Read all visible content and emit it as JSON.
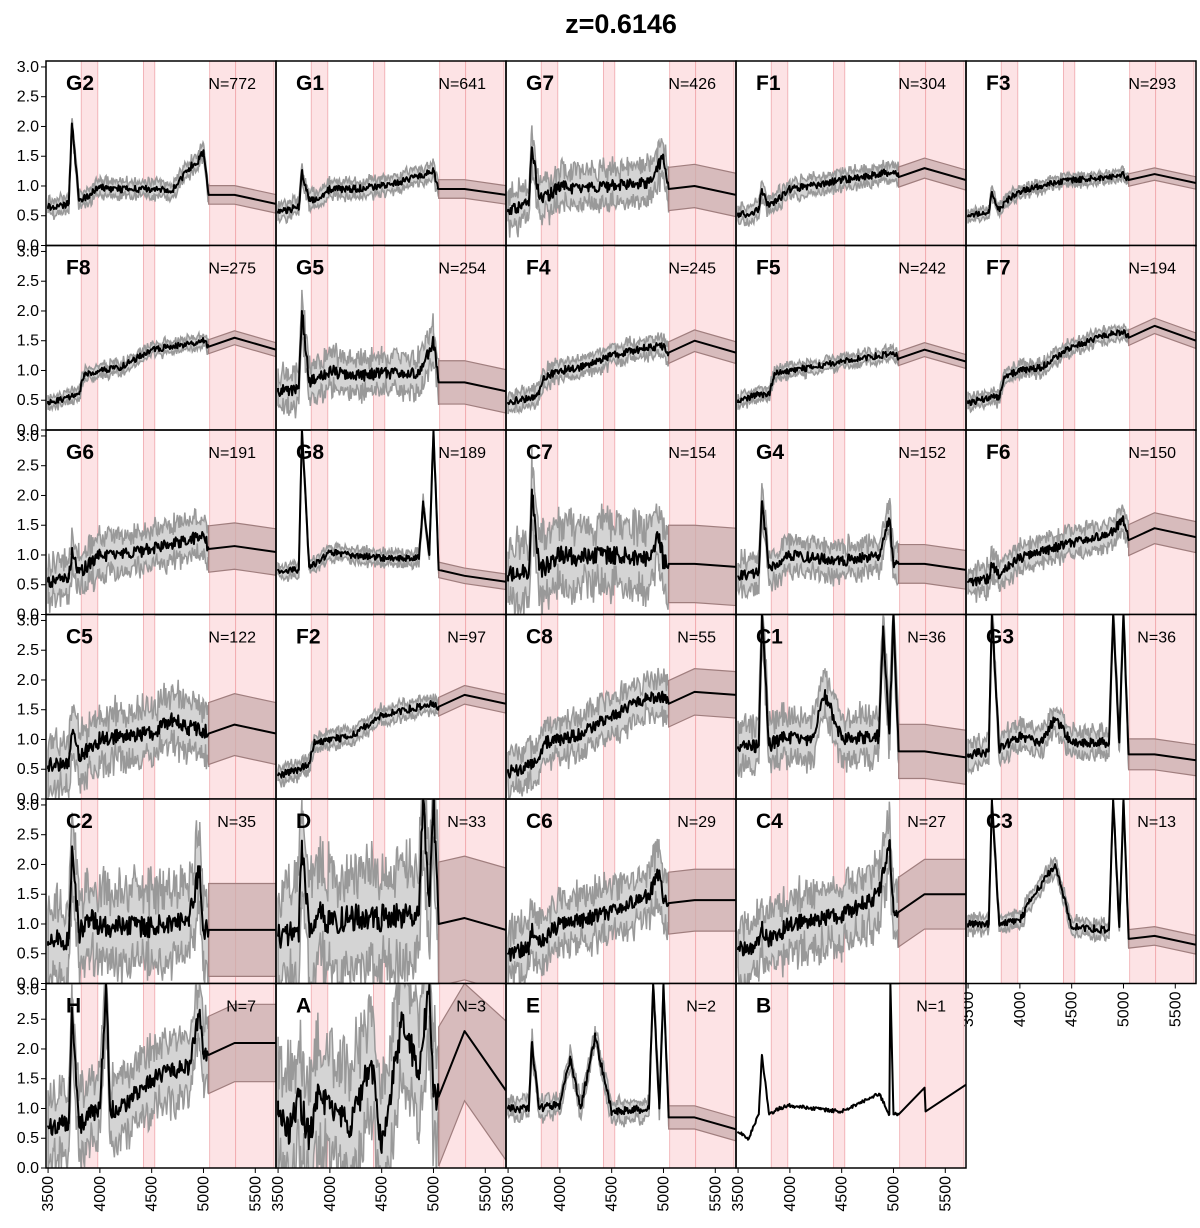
{
  "chart_data": {
    "type": "line",
    "title": "z=0.6146",
    "xlim": [
      3480,
      5700
    ],
    "ylim": [
      0,
      3.1
    ],
    "x_ticks": [
      3500,
      4000,
      4500,
      5000,
      5500
    ],
    "y_ticks": [
      "0.0",
      "0.5",
      "1.0",
      "1.5",
      "2.0",
      "2.5",
      "3.0"
    ],
    "shaded_bands": [
      [
        3820,
        3980
      ],
      [
        4420,
        4530
      ],
      [
        5060,
        5680
      ]
    ],
    "line_marks": [
      5310
    ],
    "colors": {
      "median": "#000000",
      "envelope_fill": "#d4d4d4",
      "envelope_edge": "#999999",
      "extrapolated_fill": "#c9aeae",
      "extrapolated_edge": "#a07e7e",
      "band": "#fde3e5",
      "band_edge": "#f0a8ad"
    },
    "panels": [
      {
        "label": "G2",
        "n": "N=772",
        "x": [
          3500,
          3700,
          3730,
          3800,
          3900,
          4000,
          4100,
          4300,
          4500,
          4700,
          4860,
          4960,
          5000,
          5050,
          5300,
          5700
        ],
        "y": [
          0.65,
          0.7,
          2.05,
          0.75,
          0.85,
          1.0,
          0.95,
          0.95,
          0.95,
          0.92,
          1.3,
          1.45,
          1.6,
          0.85,
          0.85,
          0.7
        ],
        "spread": 0.12
      },
      {
        "label": "G1",
        "n": "N=641",
        "x": [
          3500,
          3700,
          3730,
          3800,
          3900,
          4000,
          4200,
          4500,
          4860,
          5000,
          5050,
          5300,
          5700
        ],
        "y": [
          0.55,
          0.65,
          1.25,
          0.75,
          0.8,
          0.95,
          0.95,
          1.0,
          1.15,
          1.25,
          0.95,
          0.95,
          0.85
        ],
        "spread": 0.12
      },
      {
        "label": "G7",
        "n": "N=426",
        "x": [
          3500,
          3700,
          3730,
          3800,
          3900,
          4000,
          4200,
          4500,
          4860,
          5000,
          5050,
          5300,
          5700
        ],
        "y": [
          0.6,
          0.7,
          1.65,
          0.8,
          0.85,
          1.0,
          0.95,
          1.0,
          1.05,
          1.5,
          0.95,
          1.0,
          0.85
        ],
        "spread": 0.28
      },
      {
        "label": "F1",
        "n": "N=304",
        "x": [
          3500,
          3700,
          3730,
          3800,
          3900,
          4000,
          4200,
          4500,
          4860,
          5000,
          5050,
          5300,
          5700
        ],
        "y": [
          0.5,
          0.6,
          0.95,
          0.65,
          0.8,
          0.95,
          1.0,
          1.1,
          1.2,
          1.25,
          1.15,
          1.3,
          1.1
        ],
        "spread": 0.13
      },
      {
        "label": "F3",
        "n": "N=293",
        "x": [
          3500,
          3700,
          3730,
          3800,
          3900,
          4000,
          4200,
          4500,
          4860,
          5000,
          5050,
          5300,
          5700
        ],
        "y": [
          0.5,
          0.55,
          0.9,
          0.6,
          0.8,
          0.9,
          1.0,
          1.1,
          1.15,
          1.2,
          1.1,
          1.2,
          1.05
        ],
        "spread": 0.08
      },
      {
        "label": "F8",
        "n": "N=275",
        "x": [
          3500,
          3700,
          3800,
          3850,
          4000,
          4200,
          4500,
          4860,
          5000,
          5050,
          5300,
          5700
        ],
        "y": [
          0.45,
          0.55,
          0.6,
          0.95,
          1.0,
          1.05,
          1.35,
          1.45,
          1.5,
          1.4,
          1.55,
          1.35
        ],
        "spread": 0.09
      },
      {
        "label": "G5",
        "n": "N=254",
        "x": [
          3500,
          3700,
          3730,
          3800,
          3900,
          4000,
          4200,
          4500,
          4860,
          5000,
          5050,
          5300,
          5700
        ],
        "y": [
          0.65,
          0.7,
          2.0,
          0.8,
          0.9,
          1.0,
          0.9,
          0.95,
          0.95,
          1.5,
          0.8,
          0.8,
          0.65
        ],
        "spread": 0.28
      },
      {
        "label": "F4",
        "n": "N=245",
        "x": [
          3500,
          3700,
          3800,
          3850,
          4000,
          4200,
          4500,
          4860,
          5000,
          5050,
          5300,
          5700
        ],
        "y": [
          0.45,
          0.55,
          0.6,
          0.9,
          1.0,
          1.05,
          1.25,
          1.4,
          1.4,
          1.3,
          1.5,
          1.3
        ],
        "spread": 0.14
      },
      {
        "label": "F5",
        "n": "N=242",
        "x": [
          3500,
          3700,
          3800,
          3850,
          4000,
          4200,
          4500,
          4860,
          5000,
          5050,
          5300,
          5700
        ],
        "y": [
          0.5,
          0.6,
          0.6,
          0.95,
          1.0,
          1.05,
          1.15,
          1.25,
          1.3,
          1.2,
          1.35,
          1.15
        ],
        "spread": 0.09
      },
      {
        "label": "F7",
        "n": "N=194",
        "x": [
          3500,
          3700,
          3800,
          3850,
          4000,
          4200,
          4500,
          4860,
          5000,
          5050,
          5300,
          5700
        ],
        "y": [
          0.45,
          0.55,
          0.55,
          0.9,
          1.0,
          1.05,
          1.4,
          1.6,
          1.65,
          1.55,
          1.75,
          1.5
        ],
        "spread": 0.1
      },
      {
        "label": "G6",
        "n": "N=191",
        "x": [
          3500,
          3700,
          3730,
          3800,
          3900,
          4000,
          4200,
          4500,
          4860,
          5000,
          5050,
          5300,
          5700
        ],
        "y": [
          0.55,
          0.6,
          1.05,
          0.7,
          0.85,
          1.0,
          1.0,
          1.1,
          1.25,
          1.35,
          1.1,
          1.15,
          1.05
        ],
        "spread": 0.3
      },
      {
        "label": "G8",
        "n": "N=189",
        "x": [
          3500,
          3700,
          3730,
          3800,
          3900,
          4000,
          4200,
          4500,
          4860,
          4900,
          4960,
          5000,
          5050,
          5300,
          5700
        ],
        "y": [
          0.75,
          0.75,
          3.1,
          0.8,
          0.9,
          1.05,
          1.0,
          0.95,
          0.95,
          1.9,
          1.0,
          3.1,
          0.75,
          0.65,
          0.55
        ],
        "spread": 0.1
      },
      {
        "label": "C7",
        "n": "N=154",
        "x": [
          3500,
          3700,
          3730,
          3800,
          3900,
          4000,
          4200,
          4500,
          4860,
          4960,
          5000,
          5050,
          5300,
          5700
        ],
        "y": [
          0.65,
          0.7,
          2.1,
          0.75,
          0.85,
          1.0,
          0.95,
          1.0,
          0.95,
          1.35,
          0.85,
          0.85,
          0.85,
          0.8
        ],
        "spread": 0.5
      },
      {
        "label": "G4",
        "n": "N=152",
        "x": [
          3500,
          3700,
          3730,
          3800,
          3900,
          4000,
          4200,
          4500,
          4860,
          4960,
          5000,
          5050,
          5300,
          5700
        ],
        "y": [
          0.65,
          0.7,
          1.9,
          0.8,
          0.9,
          1.0,
          0.95,
          0.9,
          1.0,
          1.6,
          0.85,
          0.85,
          0.85,
          0.75
        ],
        "spread": 0.25
      },
      {
        "label": "F6",
        "n": "N=150",
        "x": [
          3500,
          3700,
          3730,
          3800,
          3900,
          4000,
          4200,
          4500,
          4860,
          5000,
          5050,
          5300,
          5700
        ],
        "y": [
          0.55,
          0.6,
          0.85,
          0.65,
          0.85,
          0.95,
          1.05,
          1.2,
          1.35,
          1.6,
          1.25,
          1.45,
          1.3
        ],
        "spread": 0.2
      },
      {
        "label": "C5",
        "n": "N=122",
        "x": [
          3500,
          3700,
          3730,
          3800,
          3900,
          4000,
          4200,
          4500,
          4700,
          4860,
          5000,
          5050,
          5300,
          5700
        ],
        "y": [
          0.55,
          0.65,
          1.1,
          0.75,
          0.85,
          1.0,
          1.05,
          1.1,
          1.35,
          1.2,
          1.15,
          1.1,
          1.25,
          1.1
        ],
        "spread": 0.4
      },
      {
        "label": "F2",
        "n": "N=97",
        "x": [
          3500,
          3700,
          3800,
          3850,
          4000,
          4200,
          4500,
          4860,
          5000,
          5050,
          5300,
          5700
        ],
        "y": [
          0.4,
          0.5,
          0.6,
          0.95,
          1.0,
          1.05,
          1.4,
          1.55,
          1.6,
          1.55,
          1.75,
          1.6
        ],
        "spread": 0.12
      },
      {
        "label": "C8",
        "n": "N=55",
        "x": [
          3500,
          3700,
          3800,
          3850,
          4000,
          4200,
          4500,
          4860,
          5000,
          5050,
          5300,
          5700
        ],
        "y": [
          0.45,
          0.55,
          0.7,
          0.95,
          1.0,
          1.1,
          1.4,
          1.7,
          1.7,
          1.6,
          1.8,
          1.75
        ],
        "spread": 0.3
      },
      {
        "label": "C1",
        "n": "N=36",
        "x": [
          3500,
          3700,
          3730,
          3800,
          3900,
          4000,
          4200,
          4340,
          4500,
          4860,
          4900,
          4960,
          5000,
          5050,
          5300,
          5700
        ],
        "y": [
          0.85,
          0.9,
          3.1,
          0.9,
          1.0,
          1.05,
          0.95,
          1.75,
          1.0,
          1.05,
          2.9,
          1.1,
          3.1,
          0.8,
          0.8,
          0.7
        ],
        "spread": 0.35
      },
      {
        "label": "G3",
        "n": "N=36",
        "x": [
          3500,
          3700,
          3730,
          3800,
          3900,
          4000,
          4200,
          4340,
          4500,
          4860,
          4900,
          4960,
          5000,
          5050,
          5300,
          5700
        ],
        "y": [
          0.75,
          0.8,
          3.1,
          0.85,
          0.95,
          1.05,
          0.95,
          1.35,
          0.95,
          0.95,
          3.1,
          0.95,
          3.1,
          0.75,
          0.75,
          0.65
        ],
        "spread": 0.2
      },
      {
        "label": "C2",
        "n": "N=35",
        "x": [
          3500,
          3700,
          3730,
          3800,
          3900,
          4000,
          4200,
          4500,
          4860,
          4960,
          5000,
          5050,
          5300,
          5700
        ],
        "y": [
          0.7,
          0.75,
          2.2,
          0.85,
          1.1,
          0.95,
          0.95,
          0.95,
          1.1,
          1.9,
          0.9,
          0.9,
          0.9,
          0.9
        ],
        "spread": 0.6
      },
      {
        "label": "D",
        "n": "N=33",
        "x": [
          3500,
          3700,
          3730,
          3800,
          3900,
          4000,
          4200,
          4500,
          4860,
          4900,
          4960,
          5000,
          5050,
          5300,
          5700
        ],
        "y": [
          0.8,
          0.85,
          2.4,
          1.0,
          1.2,
          1.0,
          1.1,
          1.1,
          1.2,
          3.1,
          1.3,
          3.1,
          1.0,
          1.1,
          0.9
        ],
        "spread": 0.8
      },
      {
        "label": "C6",
        "n": "N=29",
        "x": [
          3500,
          3700,
          3730,
          3800,
          3900,
          4000,
          4200,
          4500,
          4860,
          4960,
          5000,
          5050,
          5300,
          5700
        ],
        "y": [
          0.5,
          0.6,
          0.9,
          0.7,
          0.85,
          1.0,
          1.05,
          1.2,
          1.5,
          1.9,
          1.35,
          1.35,
          1.4,
          1.4
        ],
        "spread": 0.4
      },
      {
        "label": "C4",
        "n": "N=27",
        "x": [
          3500,
          3700,
          3730,
          3800,
          3900,
          4000,
          4200,
          4500,
          4860,
          4960,
          5000,
          5050,
          5300,
          5700
        ],
        "y": [
          0.6,
          0.65,
          0.95,
          0.75,
          0.85,
          1.0,
          1.05,
          1.15,
          1.5,
          2.4,
          1.2,
          1.2,
          1.5,
          1.5
        ],
        "spread": 0.45
      },
      {
        "label": "C3",
        "n": "N=13",
        "x": [
          3500,
          3700,
          3730,
          3800,
          3900,
          4000,
          4100,
          4340,
          4500,
          4860,
          4900,
          4960,
          5000,
          5050,
          5300,
          5700
        ],
        "y": [
          1.0,
          1.0,
          3.1,
          1.0,
          1.05,
          1.05,
          1.4,
          2.0,
          0.95,
          0.9,
          3.1,
          0.95,
          3.1,
          0.75,
          0.8,
          0.65
        ],
        "spread": 0.12
      },
      {
        "label": "H",
        "n": "N=7",
        "x": [
          3500,
          3700,
          3730,
          3800,
          3900,
          4000,
          4060,
          4100,
          4200,
          4500,
          4860,
          4960,
          5000,
          5050,
          5300,
          5700
        ],
        "y": [
          0.7,
          0.75,
          2.7,
          0.7,
          0.9,
          1.0,
          3.1,
          1.0,
          1.0,
          1.5,
          1.7,
          2.6,
          1.9,
          1.9,
          2.1,
          2.1
        ],
        "spread": 0.5
      },
      {
        "label": "A",
        "n": "N=3",
        "x": [
          3500,
          3600,
          3700,
          3800,
          3900,
          4000,
          4200,
          4400,
          4500,
          4700,
          4860,
          4960,
          5000,
          5050,
          5300,
          5700
        ],
        "y": [
          0.9,
          0.6,
          1.2,
          0.5,
          1.3,
          1.0,
          0.7,
          1.8,
          0.3,
          2.5,
          1.6,
          3.1,
          1.2,
          1.2,
          2.3,
          1.3
        ],
        "spread": 0.9
      },
      {
        "label": "E",
        "n": "N=2",
        "x": [
          3500,
          3700,
          3730,
          3800,
          3900,
          4000,
          4100,
          4200,
          4340,
          4500,
          4860,
          4900,
          4960,
          5000,
          5050,
          5300,
          5700
        ],
        "y": [
          1.0,
          1.0,
          2.1,
          1.0,
          1.05,
          1.05,
          1.85,
          1.0,
          2.2,
          0.95,
          1.0,
          3.1,
          1.0,
          3.1,
          0.85,
          0.85,
          0.65
        ],
        "spread": 0.15
      },
      {
        "label": "B",
        "n": "N=1",
        "x": [
          3500,
          3600,
          3700,
          3730,
          3800,
          3900,
          4000,
          4200,
          4500,
          4860,
          4960,
          4970,
          5000,
          5050,
          5300,
          5310,
          5700
        ],
        "y": [
          0.6,
          0.5,
          0.9,
          1.9,
          0.9,
          1.0,
          1.05,
          1.0,
          0.95,
          1.25,
          0.9,
          3.1,
          0.9,
          0.9,
          1.35,
          0.95,
          1.4
        ],
        "spread": 0.0
      }
    ]
  }
}
